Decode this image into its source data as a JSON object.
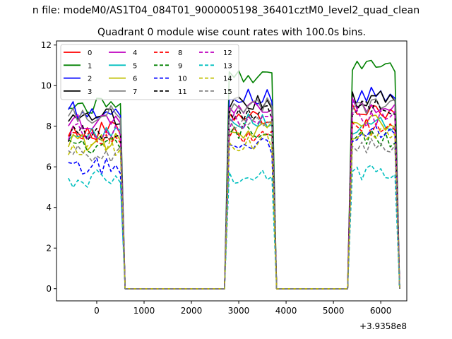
{
  "figure": {
    "suptitle": "n file: modeM0/AS1T04_084T01_9000005198_36401cztM0_level2_quad_clean",
    "background": "#ffffff"
  },
  "chart_data": {
    "type": "line",
    "title": "Quadrant 0 module wise count rates with 100.0s bins.",
    "xlabel": "",
    "ylabel": "",
    "x_offset_label": "+3.9358e8",
    "xlim": [
      -850,
      6550
    ],
    "ylim": [
      -0.6,
      12.2
    ],
    "xticks": [
      0,
      1000,
      2000,
      3000,
      4000,
      5000,
      6000
    ],
    "xtick_labels": [
      "0",
      "1000",
      "2000",
      "3000",
      "4000",
      "5000",
      "6000"
    ],
    "yticks": [
      0,
      2,
      4,
      6,
      8,
      10,
      12
    ],
    "ytick_labels": [
      "0",
      "2",
      "4",
      "6",
      "8",
      "10",
      "12"
    ],
    "grid": false,
    "legend_location": "upper left",
    "legend_columns": 4,
    "segments": [
      {
        "start": -600,
        "end": 500
      },
      {
        "start": 2800,
        "end": 3700
      },
      {
        "start": 5400,
        "end": 6300
      }
    ],
    "gap_points": [
      [
        600,
        0
      ],
      [
        2700,
        0
      ],
      [
        3800,
        0
      ],
      [
        5300,
        0
      ]
    ],
    "series": [
      {
        "name": "0",
        "color": "#ff0000",
        "dash": "solid",
        "levels": [
          7.8,
          8.3,
          8.8
        ]
      },
      {
        "name": "1",
        "color": "#008000",
        "dash": "solid",
        "levels": [
          9.0,
          10.5,
          10.8
        ]
      },
      {
        "name": "2",
        "color": "#0000ff",
        "dash": "solid",
        "levels": [
          8.8,
          9.5,
          9.6
        ]
      },
      {
        "name": "3",
        "color": "#000000",
        "dash": "solid",
        "levels": [
          8.4,
          9.2,
          9.3
        ]
      },
      {
        "name": "4",
        "color": "#bf00bf",
        "dash": "solid",
        "levels": [
          8.3,
          9.0,
          9.1
        ]
      },
      {
        "name": "5",
        "color": "#00bfbf",
        "dash": "solid",
        "levels": [
          7.5,
          8.3,
          8.0
        ]
      },
      {
        "name": "6",
        "color": "#bfbf00",
        "dash": "solid",
        "levels": [
          7.2,
          7.8,
          8.2
        ]
      },
      {
        "name": "7",
        "color": "#808080",
        "dash": "solid",
        "levels": [
          8.6,
          9.0,
          9.0
        ]
      },
      {
        "name": "8",
        "color": "#ff0000",
        "dash": "dashed",
        "levels": [
          7.4,
          7.6,
          8.0
        ]
      },
      {
        "name": "9",
        "color": "#008000",
        "dash": "dashed",
        "levels": [
          7.0,
          7.8,
          7.4
        ]
      },
      {
        "name": "10",
        "color": "#0000ff",
        "dash": "dashed",
        "levels": [
          6.0,
          7.0,
          7.6
        ]
      },
      {
        "name": "11",
        "color": "#000000",
        "dash": "dashed",
        "levels": [
          7.6,
          8.6,
          8.9
        ]
      },
      {
        "name": "12",
        "color": "#bf00bf",
        "dash": "dashed",
        "levels": [
          7.7,
          8.2,
          8.4
        ]
      },
      {
        "name": "13",
        "color": "#00bfbf",
        "dash": "dashed",
        "levels": [
          5.4,
          5.6,
          5.8
        ]
      },
      {
        "name": "14",
        "color": "#bfbf00",
        "dash": "dashed",
        "levels": [
          7.0,
          7.2,
          7.8
        ]
      },
      {
        "name": "15",
        "color": "#808080",
        "dash": "dashed",
        "levels": [
          6.6,
          8.0,
          7.0
        ]
      }
    ]
  }
}
